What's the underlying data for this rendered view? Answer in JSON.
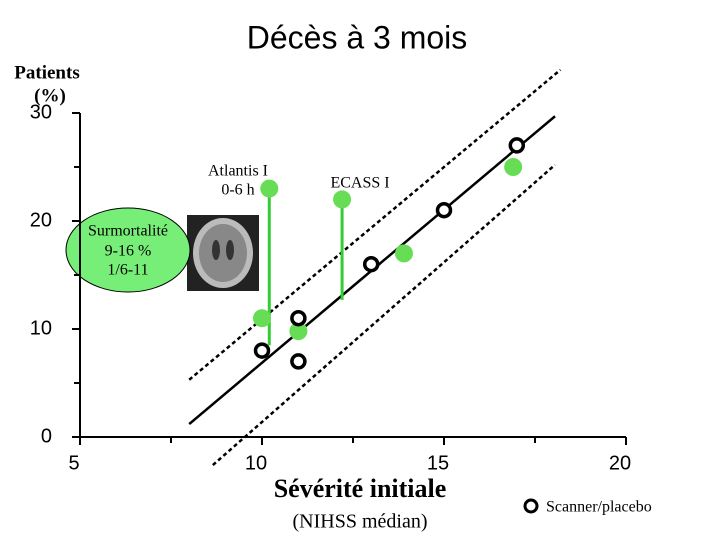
{
  "chart_data": {
    "type": "scatter",
    "title": "Décès à 3 mois",
    "y_label": [
      "Patients",
      "(%)"
    ],
    "x_label": "Sévérité initiale",
    "x_sublabel": "(NIHSS médian)",
    "xlim": [
      5,
      20
    ],
    "ylim": [
      0,
      30
    ],
    "xticks": [
      5,
      10,
      15,
      20
    ],
    "yticks": [
      0,
      10,
      20,
      30
    ],
    "x_minor_ticks": [
      7.5,
      12.5,
      17.5
    ],
    "y_minor_ticks": [
      5,
      15,
      25
    ],
    "series": [
      {
        "name": "Scanner/placebo",
        "color": "#000000",
        "marker": "open-circle",
        "x": [
          10,
          11,
          11,
          13,
          15,
          17
        ],
        "values": [
          8,
          7,
          11,
          16,
          21,
          27
        ]
      },
      {
        "color": "#66dd55",
        "marker": "filled-circle",
        "x": [
          10.2,
          10,
          11,
          12.2,
          13.9,
          16.9
        ],
        "values": [
          23,
          11,
          9.8,
          22,
          17,
          25
        ]
      }
    ],
    "drop_lines": {
      "color": "#33cc33",
      "x": [
        10.2,
        12.2
      ],
      "top": [
        23,
        22
      ],
      "bottom": [
        8.5,
        12.7
      ]
    },
    "regression": {
      "color": "#000000",
      "x": [
        8,
        18.05
      ],
      "values": [
        1.2,
        29.7
      ]
    },
    "confidence_upper": {
      "color": "#000000",
      "x": [
        8,
        18.2
      ],
      "values": [
        5.3,
        34
      ]
    },
    "confidence_lower": {
      "color": "#000000",
      "x": [
        8.65,
        18.05
      ],
      "values": [
        -2.6,
        25.2
      ]
    },
    "annotations": {
      "atlantis": [
        "Atlantis I",
        "0-6 h"
      ],
      "ecass": "ECASS I",
      "ellipse": [
        "Surmortalité",
        "9-16 %",
        "1/6-11"
      ]
    }
  }
}
